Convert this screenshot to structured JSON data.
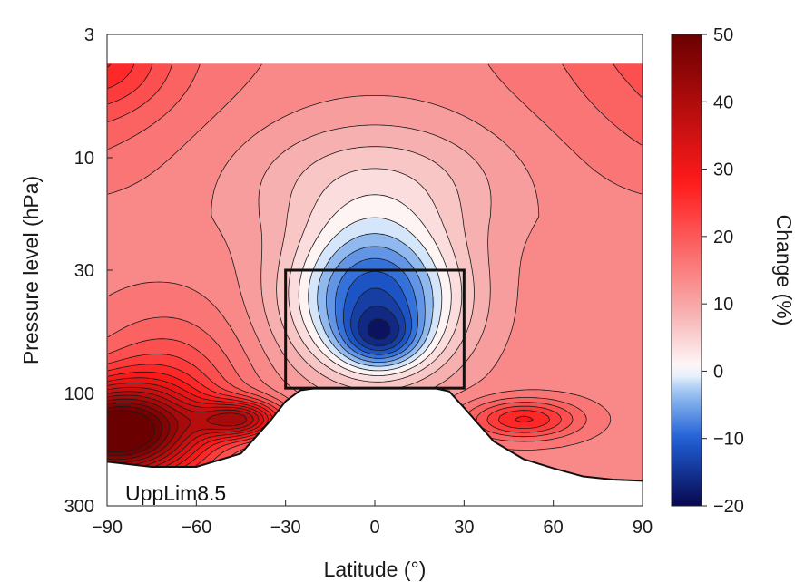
{
  "chart_data": {
    "type": "heatmap",
    "subtype": "filled-contour latitude-pressure cross-section",
    "xlabel": "Latitude (°)",
    "ylabel": "Pressure level (hPa)",
    "xlim": [
      -90,
      90
    ],
    "ylim": [
      3,
      300
    ],
    "y_scale": "log",
    "y_inverted": true,
    "x_ticks": [
      -90,
      -60,
      -30,
      0,
      30,
      60,
      90
    ],
    "x_tick_labels": [
      "−90",
      "−60",
      "−30",
      "0",
      "30",
      "60",
      "90"
    ],
    "y_ticks": [
      3,
      10,
      30,
      100,
      300
    ],
    "y_tick_labels": [
      "3",
      "10",
      "30",
      "100",
      "300"
    ],
    "colorbar": {
      "label": "Change (%)",
      "range": [
        -20,
        50
      ],
      "ticks": [
        50,
        40,
        30,
        20,
        10,
        0,
        -10,
        -20
      ],
      "tick_labels": [
        "50",
        "40",
        "30",
        "20",
        "10",
        "0",
        "−10",
        "−20"
      ],
      "colormap": [
        "#08084f",
        "#1f5fd6",
        "#9cc4f2",
        "#ffffff",
        "#f7b6b6",
        "#ff1a1a",
        "#6b0000"
      ]
    },
    "data_top_pressure": 4,
    "highlight_box": {
      "lat_range": [
        -30,
        30
      ],
      "pressure_range": [
        30,
        95
      ]
    },
    "annotation": "UppLim8.5",
    "field_features": [
      {
        "feature": "minimum",
        "lat": 2,
        "pressure": 60,
        "value": -20
      },
      {
        "feature": "maximum",
        "lat": -85,
        "pressure": 150,
        "value": 50
      },
      {
        "feature": "secondary maximum",
        "lat": -45,
        "pressure": 130,
        "value": 38
      },
      {
        "feature": "secondary maximum",
        "lat": 50,
        "pressure": 130,
        "value": 30
      }
    ],
    "contour_interval": 2.5,
    "lower_boundary": {
      "lat": [
        -90,
        -75,
        -60,
        -45,
        -35,
        -30,
        -25,
        -20,
        -10,
        0,
        10,
        20,
        25,
        30,
        40,
        50,
        60,
        70,
        80,
        90
      ],
      "pressure": [
        195,
        205,
        205,
        180,
        130,
        108,
        97,
        95,
        95,
        95,
        95,
        95,
        98,
        115,
        160,
        190,
        208,
        225,
        232,
        235
      ]
    }
  }
}
